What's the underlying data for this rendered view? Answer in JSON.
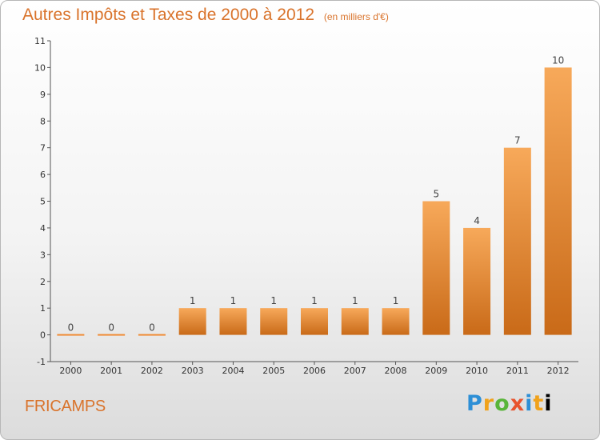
{
  "chart_data": {
    "type": "bar",
    "title": "Autres Impôts et Taxes de 2000 à 2012",
    "subtitle": "(en milliers d'€)",
    "categories": [
      "2000",
      "2001",
      "2002",
      "2003",
      "2004",
      "2005",
      "2006",
      "2007",
      "2008",
      "2009",
      "2010",
      "2011",
      "2012"
    ],
    "values": [
      0,
      0,
      0,
      1,
      1,
      1,
      1,
      1,
      1,
      5,
      4,
      7,
      10
    ],
    "y_ticks": [
      -1,
      0,
      1,
      2,
      3,
      4,
      5,
      6,
      7,
      8,
      9,
      10,
      11
    ],
    "ylim": [
      -1,
      11
    ],
    "grid": false,
    "bar_color": "#f08c35",
    "bar_color_light": "#f7a95a",
    "bar_color_dark": "#c96a18",
    "xlabel": "",
    "ylabel": ""
  },
  "footer": {
    "town": "FRICAMPS",
    "brand": "Proxiti"
  },
  "colors": {
    "accent": "#d9732b"
  }
}
